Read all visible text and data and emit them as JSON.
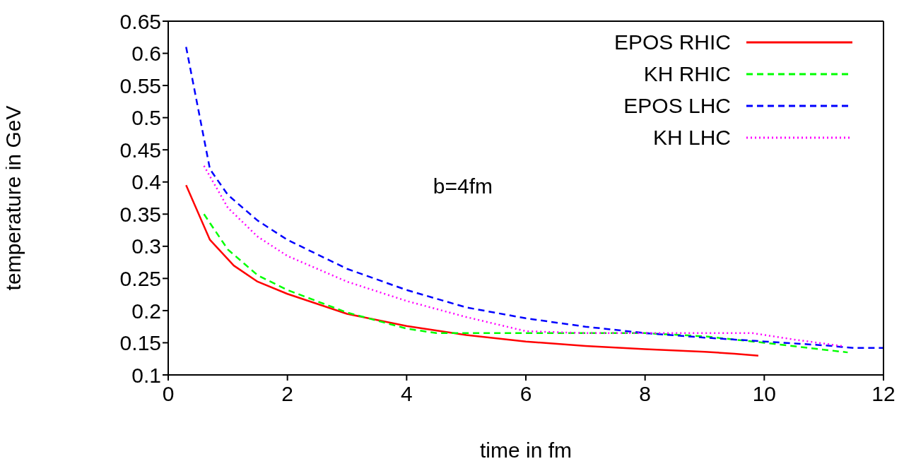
{
  "chart_data": {
    "type": "line",
    "xlabel": "time in fm",
    "ylabel": "temperature in GeV",
    "annotations": [
      "b=4fm"
    ],
    "xlim": [
      0,
      12
    ],
    "xticks": [
      0,
      2,
      4,
      6,
      8,
      10,
      12
    ],
    "ylim": [
      0.1,
      0.65
    ],
    "yticks": [
      0.1,
      0.15,
      0.2,
      0.25,
      0.3,
      0.35,
      0.4,
      0.45,
      0.5,
      0.55,
      0.6,
      0.65
    ],
    "grid": false,
    "legend": "top right",
    "marker": "none",
    "series": [
      {
        "name": "EPOS RHIC",
        "color": "#ff0000",
        "line_style": "solid",
        "x": [
          0.3,
          0.7,
          1.1,
          1.5,
          2,
          3,
          4,
          5,
          6,
          7,
          8,
          9,
          9.5,
          9.9
        ],
        "values": [
          0.395,
          0.31,
          0.27,
          0.245,
          0.226,
          0.195,
          0.176,
          0.162,
          0.152,
          0.145,
          0.14,
          0.136,
          0.133,
          0.13
        ]
      },
      {
        "name": "KH RHIC",
        "color": "#00ff00",
        "line_style": "dashed",
        "x": [
          0.6,
          1,
          1.5,
          2,
          3,
          4,
          4.5,
          5,
          6,
          8,
          9,
          10,
          11.4
        ],
        "values": [
          0.35,
          0.295,
          0.255,
          0.232,
          0.197,
          0.172,
          0.165,
          0.165,
          0.165,
          0.165,
          0.16,
          0.15,
          0.135
        ]
      },
      {
        "name": "EPOS LHC",
        "color": "#0000ff",
        "line_style": "dashed",
        "x": [
          0.3,
          0.7,
          1,
          1.5,
          2,
          3,
          4,
          5,
          6,
          7,
          8,
          9,
          10,
          11,
          11.5,
          12
        ],
        "values": [
          0.61,
          0.42,
          0.38,
          0.34,
          0.31,
          0.265,
          0.232,
          0.205,
          0.188,
          0.175,
          0.165,
          0.158,
          0.152,
          0.146,
          0.142,
          0.142
        ]
      },
      {
        "name": "KH LHC",
        "color": "#ff00ff",
        "line_style": "dotted",
        "x": [
          0.6,
          1,
          1.5,
          2,
          3,
          4,
          5,
          6,
          7,
          8,
          9,
          9.8,
          10.5,
          11.3
        ],
        "values": [
          0.425,
          0.36,
          0.315,
          0.285,
          0.245,
          0.215,
          0.19,
          0.168,
          0.165,
          0.165,
          0.165,
          0.165,
          0.155,
          0.145
        ]
      }
    ]
  }
}
